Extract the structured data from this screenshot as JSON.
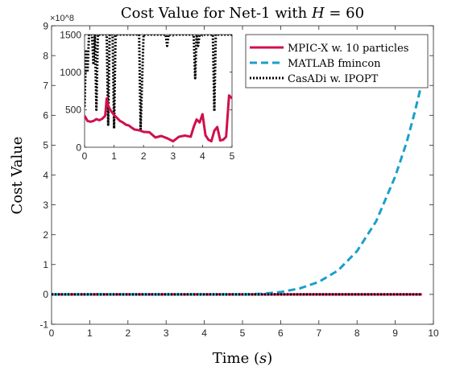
{
  "chart_data": [
    {
      "type": "line",
      "title": "Cost Value for Net-1 with H = 60",
      "title_parts": [
        "Cost Value for Net-1 with ",
        "H",
        " = 60"
      ],
      "xlabel": "Time (s)",
      "xlabel_parts": [
        "Time (",
        "s",
        ")"
      ],
      "ylabel": "Cost Value",
      "y_multiplier": "×10^8",
      "xlim": [
        0,
        10
      ],
      "ylim": [
        -1,
        9
      ],
      "xticks": [
        0,
        1,
        2,
        3,
        4,
        5,
        6,
        7,
        8,
        9,
        10
      ],
      "yticks": [
        -1,
        0,
        1,
        2,
        3,
        4,
        5,
        6,
        7,
        8,
        9
      ],
      "grid": false,
      "legend_position": "top-right",
      "series": [
        {
          "name": "MPIC-X w. 10 particles",
          "color": "#d0104c",
          "style": "solid",
          "x": [
            0,
            9.7
          ],
          "y": [
            0,
            0
          ]
        },
        {
          "name": "MATLAB fmincon",
          "color": "#1a9fcc",
          "style": "dashed",
          "x": [
            0,
            5,
            5.5,
            6,
            6.5,
            7,
            7.5,
            8,
            8.5,
            9,
            9.3,
            9.5,
            9.7
          ],
          "y": [
            0,
            0,
            0.02,
            0.08,
            0.2,
            0.42,
            0.8,
            1.45,
            2.45,
            3.95,
            5.1,
            6.05,
            7.1
          ]
        },
        {
          "name": "CasADi w. IPOPT",
          "color": "#000000",
          "style": "dotted",
          "x": [
            0,
            9.7
          ],
          "y": [
            0,
            0
          ]
        }
      ]
    },
    {
      "type": "line",
      "role": "inset",
      "xlim": [
        0,
        5
      ],
      "ylim": [
        0,
        1500
      ],
      "xticks": [
        0,
        1,
        2,
        3,
        4,
        5
      ],
      "yticks": [
        0,
        500,
        1000,
        1500
      ],
      "series": [
        {
          "name": "MPIC-X w. 10 particles",
          "color": "#d0104c",
          "style": "solid",
          "x": [
            0,
            0.1,
            0.2,
            0.3,
            0.4,
            0.5,
            0.6,
            0.7,
            0.75,
            0.8,
            0.9,
            1.0,
            1.1,
            1.2,
            1.3,
            1.4,
            1.5,
            1.6,
            1.7,
            1.8,
            1.9,
            2.0,
            2.2,
            2.4,
            2.6,
            2.8,
            3.0,
            3.2,
            3.4,
            3.6,
            3.7,
            3.8,
            3.9,
            4.0,
            4.1,
            4.2,
            4.3,
            4.4,
            4.5,
            4.6,
            4.7,
            4.8,
            4.9,
            5.0
          ],
          "y": [
            420,
            350,
            340,
            350,
            375,
            360,
            380,
            420,
            650,
            550,
            480,
            430,
            390,
            350,
            330,
            300,
            290,
            260,
            235,
            230,
            220,
            205,
            200,
            130,
            150,
            120,
            80,
            140,
            155,
            140,
            270,
            370,
            330,
            440,
            160,
            100,
            80,
            220,
            270,
            90,
            100,
            140,
            690,
            650
          ]
        },
        {
          "name": "CasADi w. IPOPT",
          "color": "#000000",
          "style": "dotted",
          "x": [
            0,
            0.05,
            0.1,
            0.15,
            0.2,
            0.25,
            0.3,
            0.35,
            0.4,
            0.45,
            0.5,
            0.55,
            0.6,
            0.65,
            0.7,
            0.75,
            0.8,
            0.85,
            0.9,
            0.95,
            1.0,
            1.05,
            1.1,
            1.2,
            1.3,
            1.4,
            1.5,
            1.6,
            1.7,
            1.75,
            1.8,
            1.85,
            1.9,
            2.0,
            2.5,
            2.75,
            2.8,
            2.85,
            2.9,
            3.0,
            3.5,
            3.7,
            3.75,
            3.8,
            3.85,
            3.9,
            4.0,
            4.1,
            4.2,
            4.3,
            4.35,
            4.4,
            4.45,
            4.5,
            4.6,
            5.0
          ],
          "y": [
            540,
            1300,
            1000,
            1500,
            1500,
            1500,
            1100,
            1500,
            500,
            1500,
            1500,
            1500,
            1500,
            1500,
            1500,
            1500,
            300,
            1500,
            1500,
            1500,
            250,
            1500,
            1500,
            1500,
            1500,
            1500,
            1500,
            1500,
            1500,
            1500,
            1500,
            1500,
            240,
            1500,
            1500,
            1500,
            1350,
            1500,
            1500,
            1500,
            1500,
            1500,
            920,
            1500,
            1350,
            1500,
            1500,
            1500,
            1500,
            1500,
            1500,
            480,
            1500,
            1500,
            1500,
            1500
          ]
        }
      ]
    }
  ]
}
